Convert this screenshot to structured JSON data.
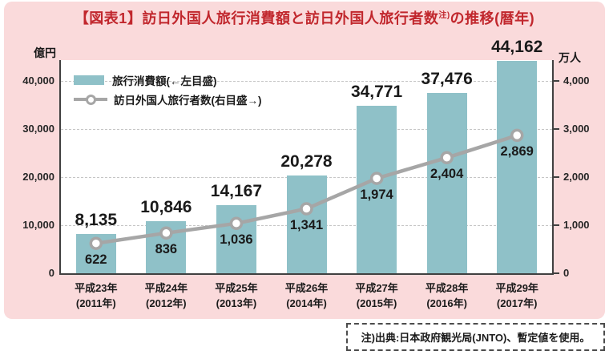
{
  "title": {
    "main": "【図表1】訪日外国人旅行消費額と訪日外国人旅行者数",
    "sup": "注)",
    "tail": "の推移(暦年)"
  },
  "axes": {
    "left_unit": "億円",
    "right_unit": "万人",
    "left_ticks": [
      "0",
      "10,000",
      "20,000",
      "30,000",
      "40,000"
    ],
    "right_ticks": [
      "0",
      "1,000",
      "2,000",
      "3,000",
      "4,000"
    ]
  },
  "legend": {
    "items": [
      {
        "label": "旅行消費額(←左目盛)",
        "swatch": "bar-swatch"
      },
      {
        "label": "訪日外国人旅行者数(右目盛→)",
        "swatch": "line-swatch"
      }
    ]
  },
  "note": {
    "text": "注)出典:日本政府観光局(JNTO)、暫定値を使用。"
  },
  "colors": {
    "panel_bg": "#fadadb",
    "title": "#c1272d",
    "bar": "#8fc1c8",
    "line": "#a6a6a6",
    "marker_fill": "#ffffff",
    "grid": "#c6c6c6",
    "axis": "#404040",
    "text": "#1a1a1a"
  },
  "chart_data": {
    "type": "combo",
    "title": "【図表1】訪日外国人旅行消費額と訪日外国人旅行者数注)の推移(暦年)",
    "categories": [
      {
        "era": "平成23年",
        "year": "(2011年)"
      },
      {
        "era": "平成24年",
        "year": "(2012年)"
      },
      {
        "era": "平成25年",
        "year": "(2013年)"
      },
      {
        "era": "平成26年",
        "year": "(2014年)"
      },
      {
        "era": "平成27年",
        "year": "(2015年)"
      },
      {
        "era": "平成28年",
        "year": "(2016年)"
      },
      {
        "era": "平成29年",
        "year": "(2017年)"
      }
    ],
    "series": [
      {
        "name": "旅行消費額(←左目盛)",
        "type": "bar",
        "axis": "left",
        "unit": "億円",
        "values": [
          8135,
          10846,
          14167,
          20278,
          34771,
          37476,
          44162
        ],
        "labels": [
          "8,135",
          "10,846",
          "14,167",
          "20,278",
          "34,771",
          "37,476",
          "44,162"
        ]
      },
      {
        "name": "訪日外国人旅行者数(右目盛→)",
        "type": "line",
        "axis": "right",
        "unit": "万人",
        "values": [
          622,
          836,
          1036,
          1341,
          1974,
          2404,
          2869
        ],
        "labels": [
          "622",
          "836",
          "1,036",
          "1,341",
          "1,974",
          "2,404",
          "2,869"
        ]
      }
    ],
    "left_axis": {
      "label": "億円",
      "min": 0,
      "max_tick": 40000,
      "tick_step": 10000
    },
    "right_axis": {
      "label": "万人",
      "min": 0,
      "max_tick": 4000,
      "tick_step": 1000
    },
    "grid": true,
    "legend_position": "top-left-inside",
    "note": "注)出典:日本政府観光局(JNTO)、暫定値を使用。"
  }
}
